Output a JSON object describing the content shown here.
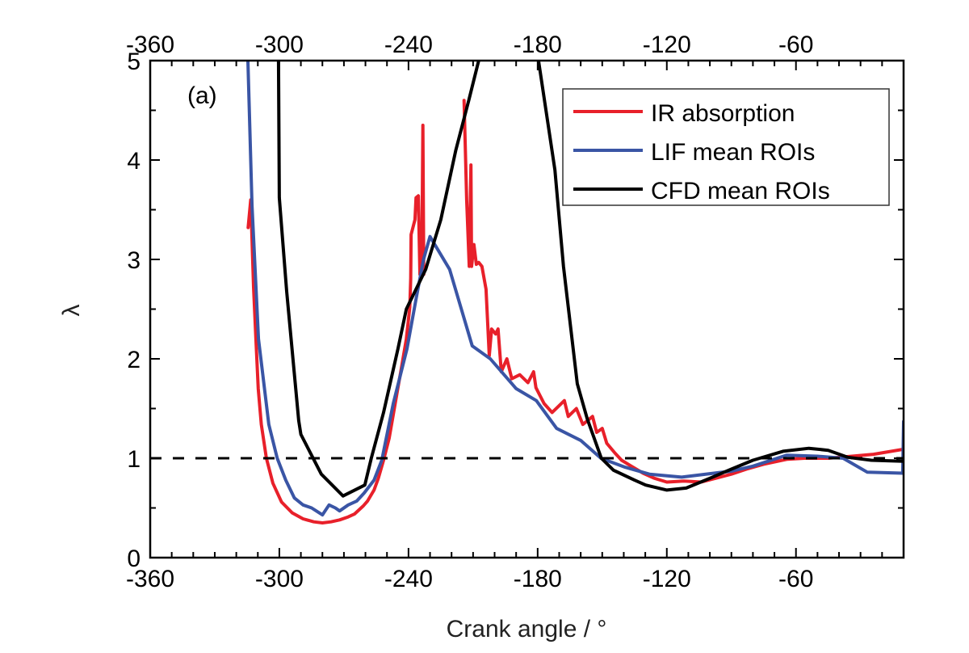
{
  "chart_data": {
    "type": "line",
    "title": "",
    "panel_label": "(a)",
    "xlabel": "Crank angle / °",
    "ylabel": "λ",
    "xlim": [
      -360,
      -10
    ],
    "ylim": [
      0,
      5
    ],
    "x_ticks": [
      -360,
      -300,
      -240,
      -180,
      -120,
      -60
    ],
    "x_tick_labels": [
      "-360",
      "-300",
      "-240",
      "-180",
      "-120",
      "-60"
    ],
    "x_minor_step": 10,
    "y_ticks": [
      0,
      1,
      2,
      3,
      4,
      5
    ],
    "y_tick_labels": [
      "0",
      "1",
      "2",
      "3",
      "4",
      "5"
    ],
    "y_minor_step": 0.5,
    "top_axis_mirrored": true,
    "grid": false,
    "legend_position": "top-right",
    "reference_line": {
      "y": 1,
      "style": "dashed",
      "color": "#000000"
    },
    "series": [
      {
        "name": "IR absorption",
        "color": "#e8202a",
        "segments": [
          [
            [
              -314.5,
              3.32
            ],
            [
              -313.3,
              3.6
            ],
            [
              -312.0,
              2.72
            ],
            [
              -310.9,
              2.2
            ],
            [
              -309.8,
              1.7
            ],
            [
              -308.4,
              1.34
            ],
            [
              -306.0,
              1.0
            ],
            [
              -303.0,
              0.75
            ],
            [
              -299.0,
              0.56
            ],
            [
              -294.0,
              0.45
            ],
            [
              -289.0,
              0.39
            ],
            [
              -284.0,
              0.36
            ],
            [
              -280.0,
              0.35
            ],
            [
              -276.0,
              0.36
            ],
            [
              -272.0,
              0.38
            ],
            [
              -268.0,
              0.41
            ],
            [
              -265.0,
              0.44
            ],
            [
              -261.0,
              0.52
            ],
            [
              -259.0,
              0.57
            ],
            [
              -256.0,
              0.68
            ],
            [
              -254.0,
              0.8
            ],
            [
              -251.6,
              0.98
            ],
            [
              -249.0,
              1.2
            ],
            [
              -247.4,
              1.4
            ],
            [
              -245.0,
              1.7
            ],
            [
              -243.6,
              1.87
            ],
            [
              -241.0,
              2.2
            ],
            [
              -239.4,
              2.52
            ],
            [
              -239.0,
              2.8
            ],
            [
              -238.8,
              3.25
            ],
            [
              -237.0,
              3.4
            ],
            [
              -236.5,
              3.62
            ],
            [
              -235.4,
              3.64
            ],
            [
              -234.7,
              2.85
            ],
            [
              -233.8,
              3.0
            ],
            [
              -233.3,
              4.35
            ],
            [
              -232.9,
              2.85
            ]
          ],
          [
            [
              -214.2,
              4.6
            ],
            [
              -213.0,
              3.6
            ],
            [
              -211.8,
              2.93
            ],
            [
              -211.0,
              3.95
            ],
            [
              -210.7,
              2.93
            ],
            [
              -209.6,
              3.15
            ],
            [
              -208.5,
              2.95
            ],
            [
              -207.4,
              2.97
            ],
            [
              -205.9,
              2.93
            ],
            [
              -204.0,
              2.7
            ],
            [
              -202.5,
              2.03
            ],
            [
              -201.4,
              2.3
            ],
            [
              -199.5,
              2.25
            ],
            [
              -198.4,
              2.3
            ],
            [
              -196.9,
              1.87
            ],
            [
              -194.3,
              2.0
            ],
            [
              -192.0,
              1.8
            ],
            [
              -188.3,
              1.84
            ],
            [
              -184.5,
              1.76
            ],
            [
              -181.9,
              1.87
            ],
            [
              -180.8,
              1.71
            ],
            [
              -177.0,
              1.55
            ],
            [
              -173.3,
              1.46
            ],
            [
              -167.6,
              1.58
            ],
            [
              -165.8,
              1.42
            ],
            [
              -162.0,
              1.5
            ],
            [
              -159.0,
              1.34
            ],
            [
              -154.5,
              1.42
            ],
            [
              -152.6,
              1.26
            ],
            [
              -150.0,
              1.3
            ],
            [
              -147.9,
              1.15
            ],
            [
              -144.0,
              1.05
            ],
            [
              -141.0,
              0.98
            ],
            [
              -136.5,
              0.92
            ],
            [
              -131.0,
              0.85
            ],
            [
              -126.0,
              0.8
            ],
            [
              -120.0,
              0.76
            ],
            [
              -112.0,
              0.77
            ],
            [
              -104.0,
              0.76
            ],
            [
              -97.0,
              0.8
            ],
            [
              -90.0,
              0.84
            ],
            [
              -83.0,
              0.89
            ],
            [
              -75.0,
              0.94
            ],
            [
              -64.0,
              0.99
            ],
            [
              -56.0,
              1.0
            ],
            [
              -45.0,
              1.0
            ],
            [
              -34.0,
              1.02
            ],
            [
              -24.0,
              1.04
            ],
            [
              -10.0,
              1.09
            ]
          ]
        ]
      },
      {
        "name": "LIF mean ROIs",
        "color": "#3a55a5",
        "segments": [
          [
            [
              -314.6,
              5.0
            ],
            [
              -312.7,
              3.54
            ],
            [
              -309.7,
              2.2
            ],
            [
              -304.9,
              1.34
            ],
            [
              -301.0,
              1.0
            ],
            [
              -297.0,
              0.78
            ],
            [
              -293.0,
              0.6
            ],
            [
              -289.0,
              0.53
            ],
            [
              -285.0,
              0.5
            ],
            [
              -280.0,
              0.43
            ],
            [
              -276.9,
              0.53
            ],
            [
              -274.0,
              0.5
            ],
            [
              -272.0,
              0.47
            ],
            [
              -268.0,
              0.53
            ],
            [
              -264.0,
              0.57
            ],
            [
              -260.6,
              0.65
            ],
            [
              -256.0,
              0.78
            ],
            [
              -252.4,
              0.98
            ],
            [
              -247.1,
              1.55
            ],
            [
              -240.7,
              2.1
            ],
            [
              -236.5,
              2.6
            ],
            [
              -233.0,
              3.0
            ],
            [
              -230.0,
              3.23
            ],
            [
              -220.9,
              2.9
            ],
            [
              -210.4,
              2.13
            ],
            [
              -202.0,
              2.0
            ],
            [
              -190.0,
              1.7
            ],
            [
              -180.6,
              1.58
            ],
            [
              -171.2,
              1.3
            ],
            [
              -160.0,
              1.18
            ],
            [
              -150.6,
              1.0
            ],
            [
              -139.4,
              0.91
            ],
            [
              -128.1,
              0.84
            ],
            [
              -113.1,
              0.81
            ],
            [
              -98.1,
              0.85
            ],
            [
              -90.0,
              0.87
            ],
            [
              -80.0,
              0.92
            ],
            [
              -64.4,
              1.03
            ],
            [
              -50.0,
              1.02
            ],
            [
              -38.1,
              1.0
            ],
            [
              -26.9,
              0.86
            ],
            [
              -10.4,
              0.85
            ],
            [
              -10.0,
              1.37
            ]
          ]
        ]
      },
      {
        "name": "CFD mean ROIs",
        "color": "#000000",
        "segments": [
          [
            [
              -300.4,
              5.0
            ],
            [
              -300.0,
              3.62
            ],
            [
              -296.6,
              2.68
            ],
            [
              -291.0,
              1.38
            ],
            [
              -290.0,
              1.24
            ],
            [
              -280.5,
              0.84
            ],
            [
              -270.4,
              0.62
            ],
            [
              -260.3,
              0.73
            ],
            [
              -257.3,
              1.0
            ],
            [
              -251.6,
              1.46
            ],
            [
              -244.9,
              2.1
            ],
            [
              -241.0,
              2.5
            ],
            [
              -232.0,
              2.9
            ],
            [
              -225.0,
              3.4
            ],
            [
              -218.0,
              4.1
            ],
            [
              -212.0,
              4.6
            ],
            [
              -207.4,
              5.0
            ]
          ],
          [
            [
              -179.6,
              5.0
            ],
            [
              -172.0,
              3.9
            ],
            [
              -168.0,
              2.93
            ],
            [
              -161.6,
              1.75
            ],
            [
              -157.0,
              1.4
            ],
            [
              -150.4,
              1.0
            ],
            [
              -144.8,
              0.88
            ],
            [
              -135.0,
              0.78
            ],
            [
              -129.8,
              0.73
            ],
            [
              -120.0,
              0.68
            ],
            [
              -111.0,
              0.7
            ],
            [
              -99.8,
              0.8
            ],
            [
              -90.0,
              0.89
            ],
            [
              -80.0,
              0.98
            ],
            [
              -66.0,
              1.07
            ],
            [
              -54.0,
              1.1
            ],
            [
              -45.0,
              1.08
            ],
            [
              -36.0,
              1.01
            ],
            [
              -25.0,
              0.98
            ],
            [
              -10.0,
              0.97
            ]
          ]
        ]
      }
    ]
  }
}
